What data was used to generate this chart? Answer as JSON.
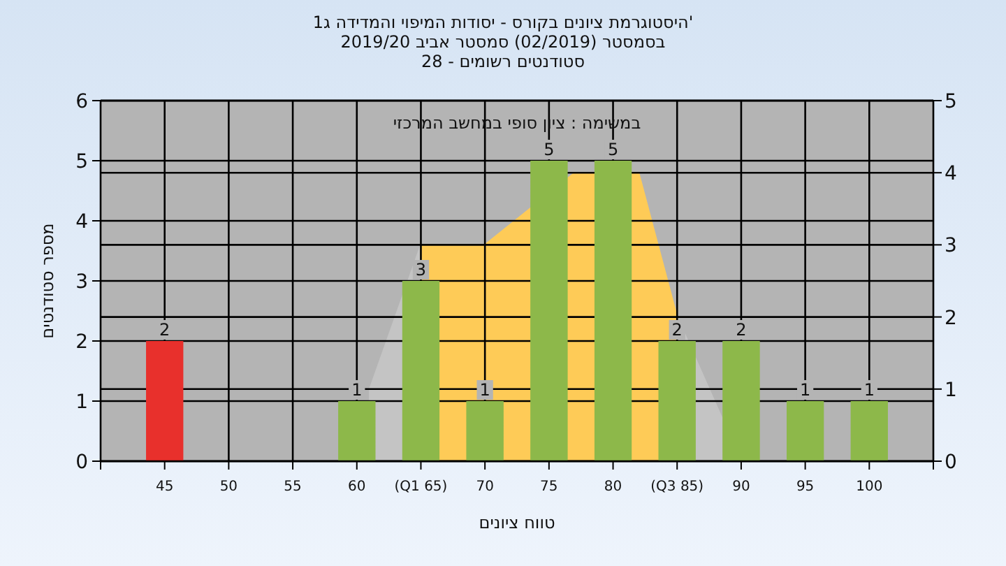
{
  "chart_data": {
    "type": "bar",
    "title": "'היסטוגרמת ציונים בקורס - יסודות המיפוי והמדידה ג1",
    "subtitle": "בסמסטר  (02/2019)  סמסטר אביב 2019/20\nסטודנטים רשומים - 28",
    "xlabel": "טווח ציונים",
    "ylabel": "מספר סטודנטים",
    "annotations": [
      "במשימה : ציון סופי במחשב המרכזי"
    ],
    "xlim": [
      40,
      105
    ],
    "xticks": [
      45,
      50,
      55,
      60,
      {
        "value": 65,
        "label": "(Q1 65)"
      },
      70,
      75,
      80,
      {
        "value": 85,
        "label": "(Q3 85)"
      },
      90,
      95,
      100
    ],
    "ylim": [
      0,
      6
    ],
    "yticks": [
      0,
      1,
      2,
      3,
      4,
      5,
      6
    ],
    "y2lim": [
      0,
      5
    ],
    "y2ticks": [
      0,
      1,
      2,
      3,
      4,
      5
    ],
    "grid": true,
    "series": [
      {
        "type": "area",
        "axis": "y2",
        "color": "#c4c4c4",
        "x": [
          61,
          65
        ],
        "values": [
          1,
          3
        ]
      },
      {
        "type": "area",
        "axis": "y2",
        "color": "#c4c4c4",
        "x": [
          85,
          88.5
        ],
        "values": [
          2,
          0.6
        ]
      },
      {
        "type": "area",
        "axis": "y2",
        "color": "#fecb57",
        "x": [
          65,
          70,
          77,
          82,
          85
        ],
        "values": [
          3,
          3,
          4,
          4,
          2
        ]
      },
      {
        "type": "bar",
        "x": [
          45,
          60,
          65,
          70,
          75,
          80,
          85,
          90,
          95,
          100
        ],
        "values": [
          2,
          1,
          3,
          1,
          5,
          5,
          2,
          2,
          1,
          1
        ],
        "value_labels": [
          "2",
          "1",
          "3",
          "1",
          "5",
          "5",
          "2",
          "2",
          "1",
          "1"
        ],
        "colors": [
          "#e8302c",
          "#8db84a",
          "#8db84a",
          "#8db84a",
          "#8db84a",
          "#8db84a",
          "#8db84a",
          "#8db84a",
          "#8db84a",
          "#8db84a"
        ]
      }
    ]
  }
}
